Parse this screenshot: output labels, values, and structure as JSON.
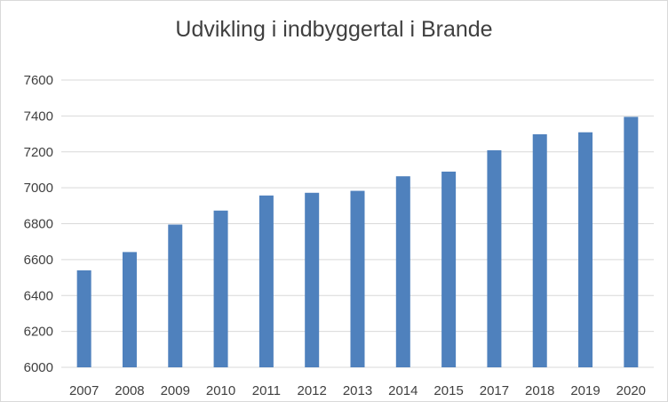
{
  "chart_data": {
    "type": "bar",
    "title": "Udvikling i indbyggertal i Brande",
    "xlabel": "",
    "ylabel": "",
    "categories": [
      "2007",
      "2008",
      "2009",
      "2010",
      "2011",
      "2012",
      "2013",
      "2014",
      "2015",
      "2017",
      "2018",
      "2019",
      "2020"
    ],
    "values": [
      6540,
      6642,
      6795,
      6873,
      6957,
      6972,
      6983,
      7064,
      7090,
      7209,
      7298,
      7309,
      7395
    ],
    "ylim": [
      6000,
      7600
    ],
    "yticks": [
      "6000",
      "6200",
      "6400",
      "6600",
      "6800",
      "7000",
      "7200",
      "7400",
      "7600"
    ],
    "grid": true,
    "legend": "none",
    "colors": {
      "bar": "#4f81bd",
      "grid": "#d9d9d9",
      "text": "#404040"
    }
  }
}
